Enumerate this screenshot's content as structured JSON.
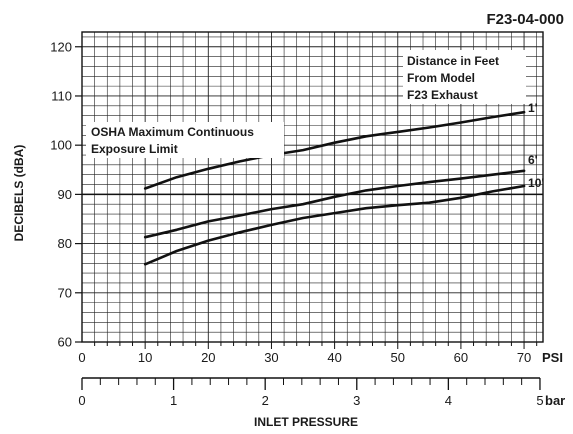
{
  "figure_id": "F23-04-000",
  "chart_data": {
    "type": "line",
    "ylabel": "DECIBELS (dBA)",
    "xlabel": "INLET PRESSURE",
    "ylim": [
      60,
      123
    ],
    "xlim_psi": [
      0,
      73
    ],
    "y_ticks": [
      "60",
      "70",
      "80",
      "90",
      "100",
      "110",
      "120"
    ],
    "x_ticks_psi": [
      "0",
      "10",
      "20",
      "30",
      "40",
      "50",
      "60",
      "70"
    ],
    "x_unit_psi": "PSI",
    "x_ticks_bar": [
      "0",
      "1",
      "2",
      "3",
      "4",
      "5"
    ],
    "x_unit_bar": "bar",
    "grid": true,
    "reference_line": {
      "value": 90,
      "label_line1": "OSHA Maximum Continuous",
      "label_line2": "Exposure Limit"
    },
    "legend_title": [
      "Distance in Feet",
      "From Model",
      "F23 Exhaust"
    ],
    "series": [
      {
        "name": "1'",
        "x": [
          10,
          15,
          20,
          25,
          30,
          35,
          40,
          45,
          50,
          55,
          60,
          65,
          70
        ],
        "values": [
          91.2,
          93.5,
          95.2,
          96.7,
          98.0,
          99.0,
          100.5,
          101.8,
          102.7,
          103.6,
          104.6,
          105.7,
          106.7
        ]
      },
      {
        "name": "6'",
        "x": [
          10,
          15,
          20,
          25,
          30,
          35,
          40,
          45,
          50,
          55,
          60,
          65,
          70
        ],
        "values": [
          81.3,
          82.8,
          84.5,
          85.7,
          87.0,
          88.0,
          89.5,
          90.8,
          91.7,
          92.5,
          93.2,
          94.0,
          94.8
        ]
      },
      {
        "name": "10'",
        "x": [
          10,
          15,
          20,
          25,
          30,
          35,
          40,
          45,
          50,
          55,
          60,
          65,
          70
        ],
        "values": [
          75.8,
          78.5,
          80.6,
          82.3,
          83.8,
          85.2,
          86.2,
          87.2,
          87.8,
          88.3,
          89.3,
          90.6,
          91.7
        ]
      }
    ]
  }
}
